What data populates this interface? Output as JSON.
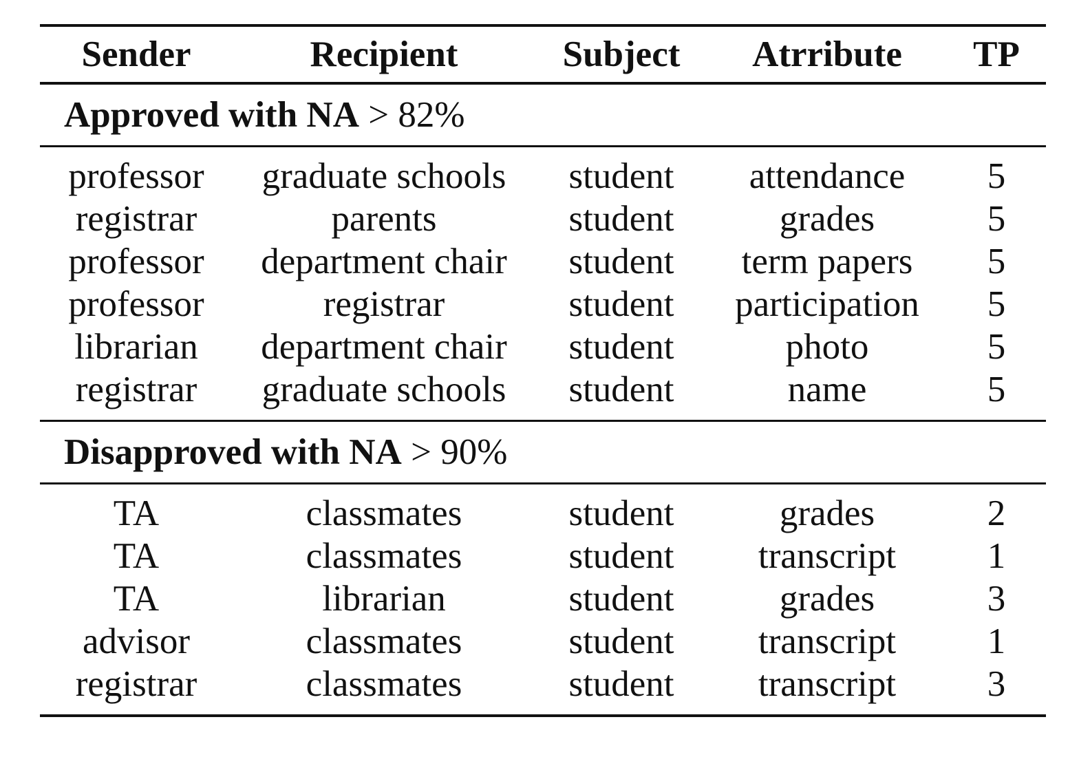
{
  "header": {
    "sender": "Sender",
    "recipient": "Recipient",
    "subject": "Subject",
    "attribute": "Atrribute",
    "tp": "TP"
  },
  "sections": [
    {
      "label": "Approved with NA",
      "threshold": "> 82%",
      "rows": [
        {
          "sender": "professor",
          "recipient": "graduate schools",
          "subject": "student",
          "attribute": "attendance",
          "tp": "5"
        },
        {
          "sender": "registrar",
          "recipient": "parents",
          "subject": "student",
          "attribute": "grades",
          "tp": "5"
        },
        {
          "sender": "professor",
          "recipient": "department chair",
          "subject": "student",
          "attribute": "term papers",
          "tp": "5"
        },
        {
          "sender": "professor",
          "recipient": "registrar",
          "subject": "student",
          "attribute": "participation",
          "tp": "5"
        },
        {
          "sender": "librarian",
          "recipient": "department chair",
          "subject": "student",
          "attribute": "photo",
          "tp": "5"
        },
        {
          "sender": "registrar",
          "recipient": "graduate schools",
          "subject": "student",
          "attribute": "name",
          "tp": "5"
        }
      ]
    },
    {
      "label": "Disapproved with NA",
      "threshold": "> 90%",
      "rows": [
        {
          "sender": "TA",
          "recipient": "classmates",
          "subject": "student",
          "attribute": "grades",
          "tp": "2"
        },
        {
          "sender": "TA",
          "recipient": "classmates",
          "subject": "student",
          "attribute": "transcript",
          "tp": "1"
        },
        {
          "sender": "TA",
          "recipient": "librarian",
          "subject": "student",
          "attribute": "grades",
          "tp": "3"
        },
        {
          "sender": "advisor",
          "recipient": "classmates",
          "subject": "student",
          "attribute": "transcript",
          "tp": "1"
        },
        {
          "sender": "registrar",
          "recipient": "classmates",
          "subject": "student",
          "attribute": "transcript",
          "tp": "3"
        }
      ]
    }
  ]
}
